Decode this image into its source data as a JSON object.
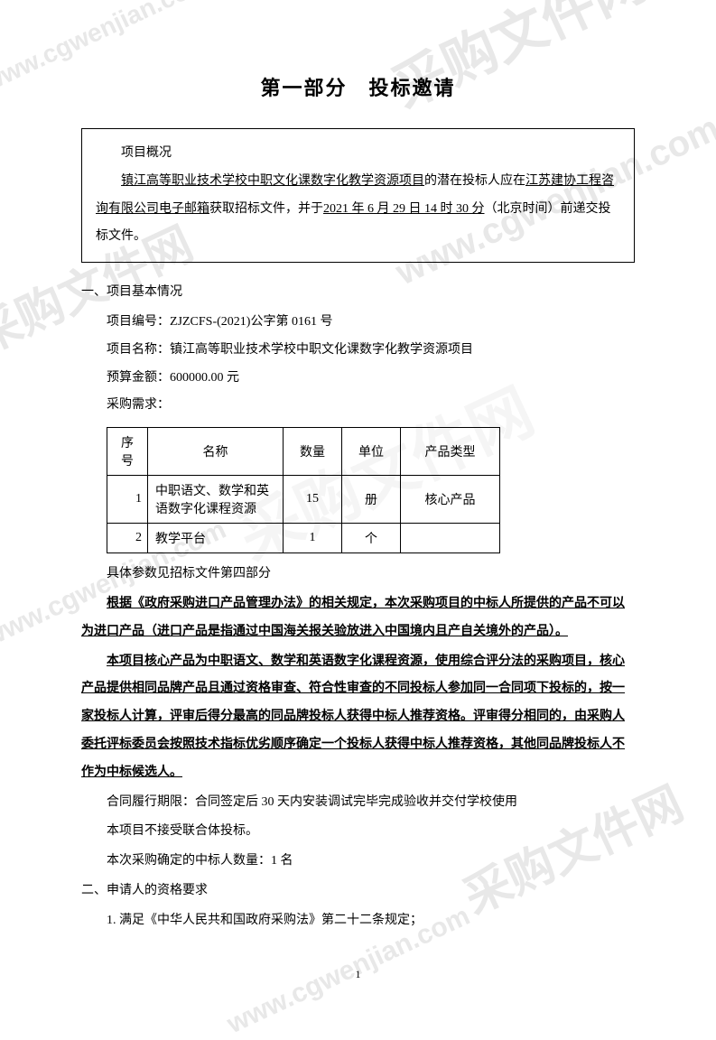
{
  "watermarks": {
    "text_cn": "采购文件网",
    "text_url": "www.cgwenjian.com"
  },
  "title": "第一部分　投标邀请",
  "overview": {
    "heading": "项目概况",
    "line1_part1": "镇江高等职业技术学校中职文化课数字化教学资源项目",
    "line1_part2": "的潜在投标人应在",
    "line1_part3": "江苏建协工程咨询有限公司电子邮箱",
    "line1_part4": "获取招标文件，并于",
    "deadline": "2021 年 6 月 29 日 14 时 30 分",
    "line1_part5": "（北京时间）前递交投标文件。"
  },
  "section1": {
    "title": "一、项目基本情况",
    "proj_no_label": "项目编号：",
    "proj_no": "ZJZCFS-(2021)公字第 0161 号",
    "proj_name_label": "项目名称：",
    "proj_name": "镇江高等职业技术学校中职文化课数字化教学资源项目",
    "budget_label": "预算金额：",
    "budget": "600000.00 元",
    "demand_label": "采购需求："
  },
  "table": {
    "headers": {
      "seq": "序号",
      "name": "名称",
      "qty": "数量",
      "unit": "单位",
      "type": "产品类型"
    },
    "rows": [
      {
        "seq": "1",
        "name": "中职语文、数学和英语数字化课程资源",
        "qty": "15",
        "unit": "册",
        "type": "核心产品"
      },
      {
        "seq": "2",
        "name": "教学平台",
        "qty": "1",
        "unit": "个",
        "type": ""
      }
    ],
    "note": "具体参数见招标文件第四部分"
  },
  "bold_para1": "根据《政府采购进口产品管理办法》的相关规定，本次采购项目的中标人所提供的产品不可以为进口产品（进口产品是指通过中国海关报关验放进入中国境内且产自关境外的产品）。",
  "bold_para2": "本项目核心产品为中职语文、数学和英语数字化课程资源，使用综合评分法的采购项目，核心产品提供相同品牌产品且通过资格审查、符合性审查的不同投标人参加同一合同项下投标的，按一家投标人计算，评审后得分最高的同品牌投标人获得中标人推荐资格。评审得分相同的，由采购人委托评标委员会按照技术指标优劣顺序确定一个投标人获得中标人推荐资格，其他同品牌投标人不作为中标候选人。",
  "contract_period": "合同履行期限：合同签定后 30 天内安装调试完毕完成验收并交付学校使用",
  "no_consortium": "本项目不接受联合体投标。",
  "winner_count": "本次采购确定的中标人数量：1 名",
  "section2": {
    "title": "二、申请人的资格要求",
    "item1": "1. 满足《中华人民共和国政府采购法》第二十二条规定；"
  },
  "page_number": "1"
}
